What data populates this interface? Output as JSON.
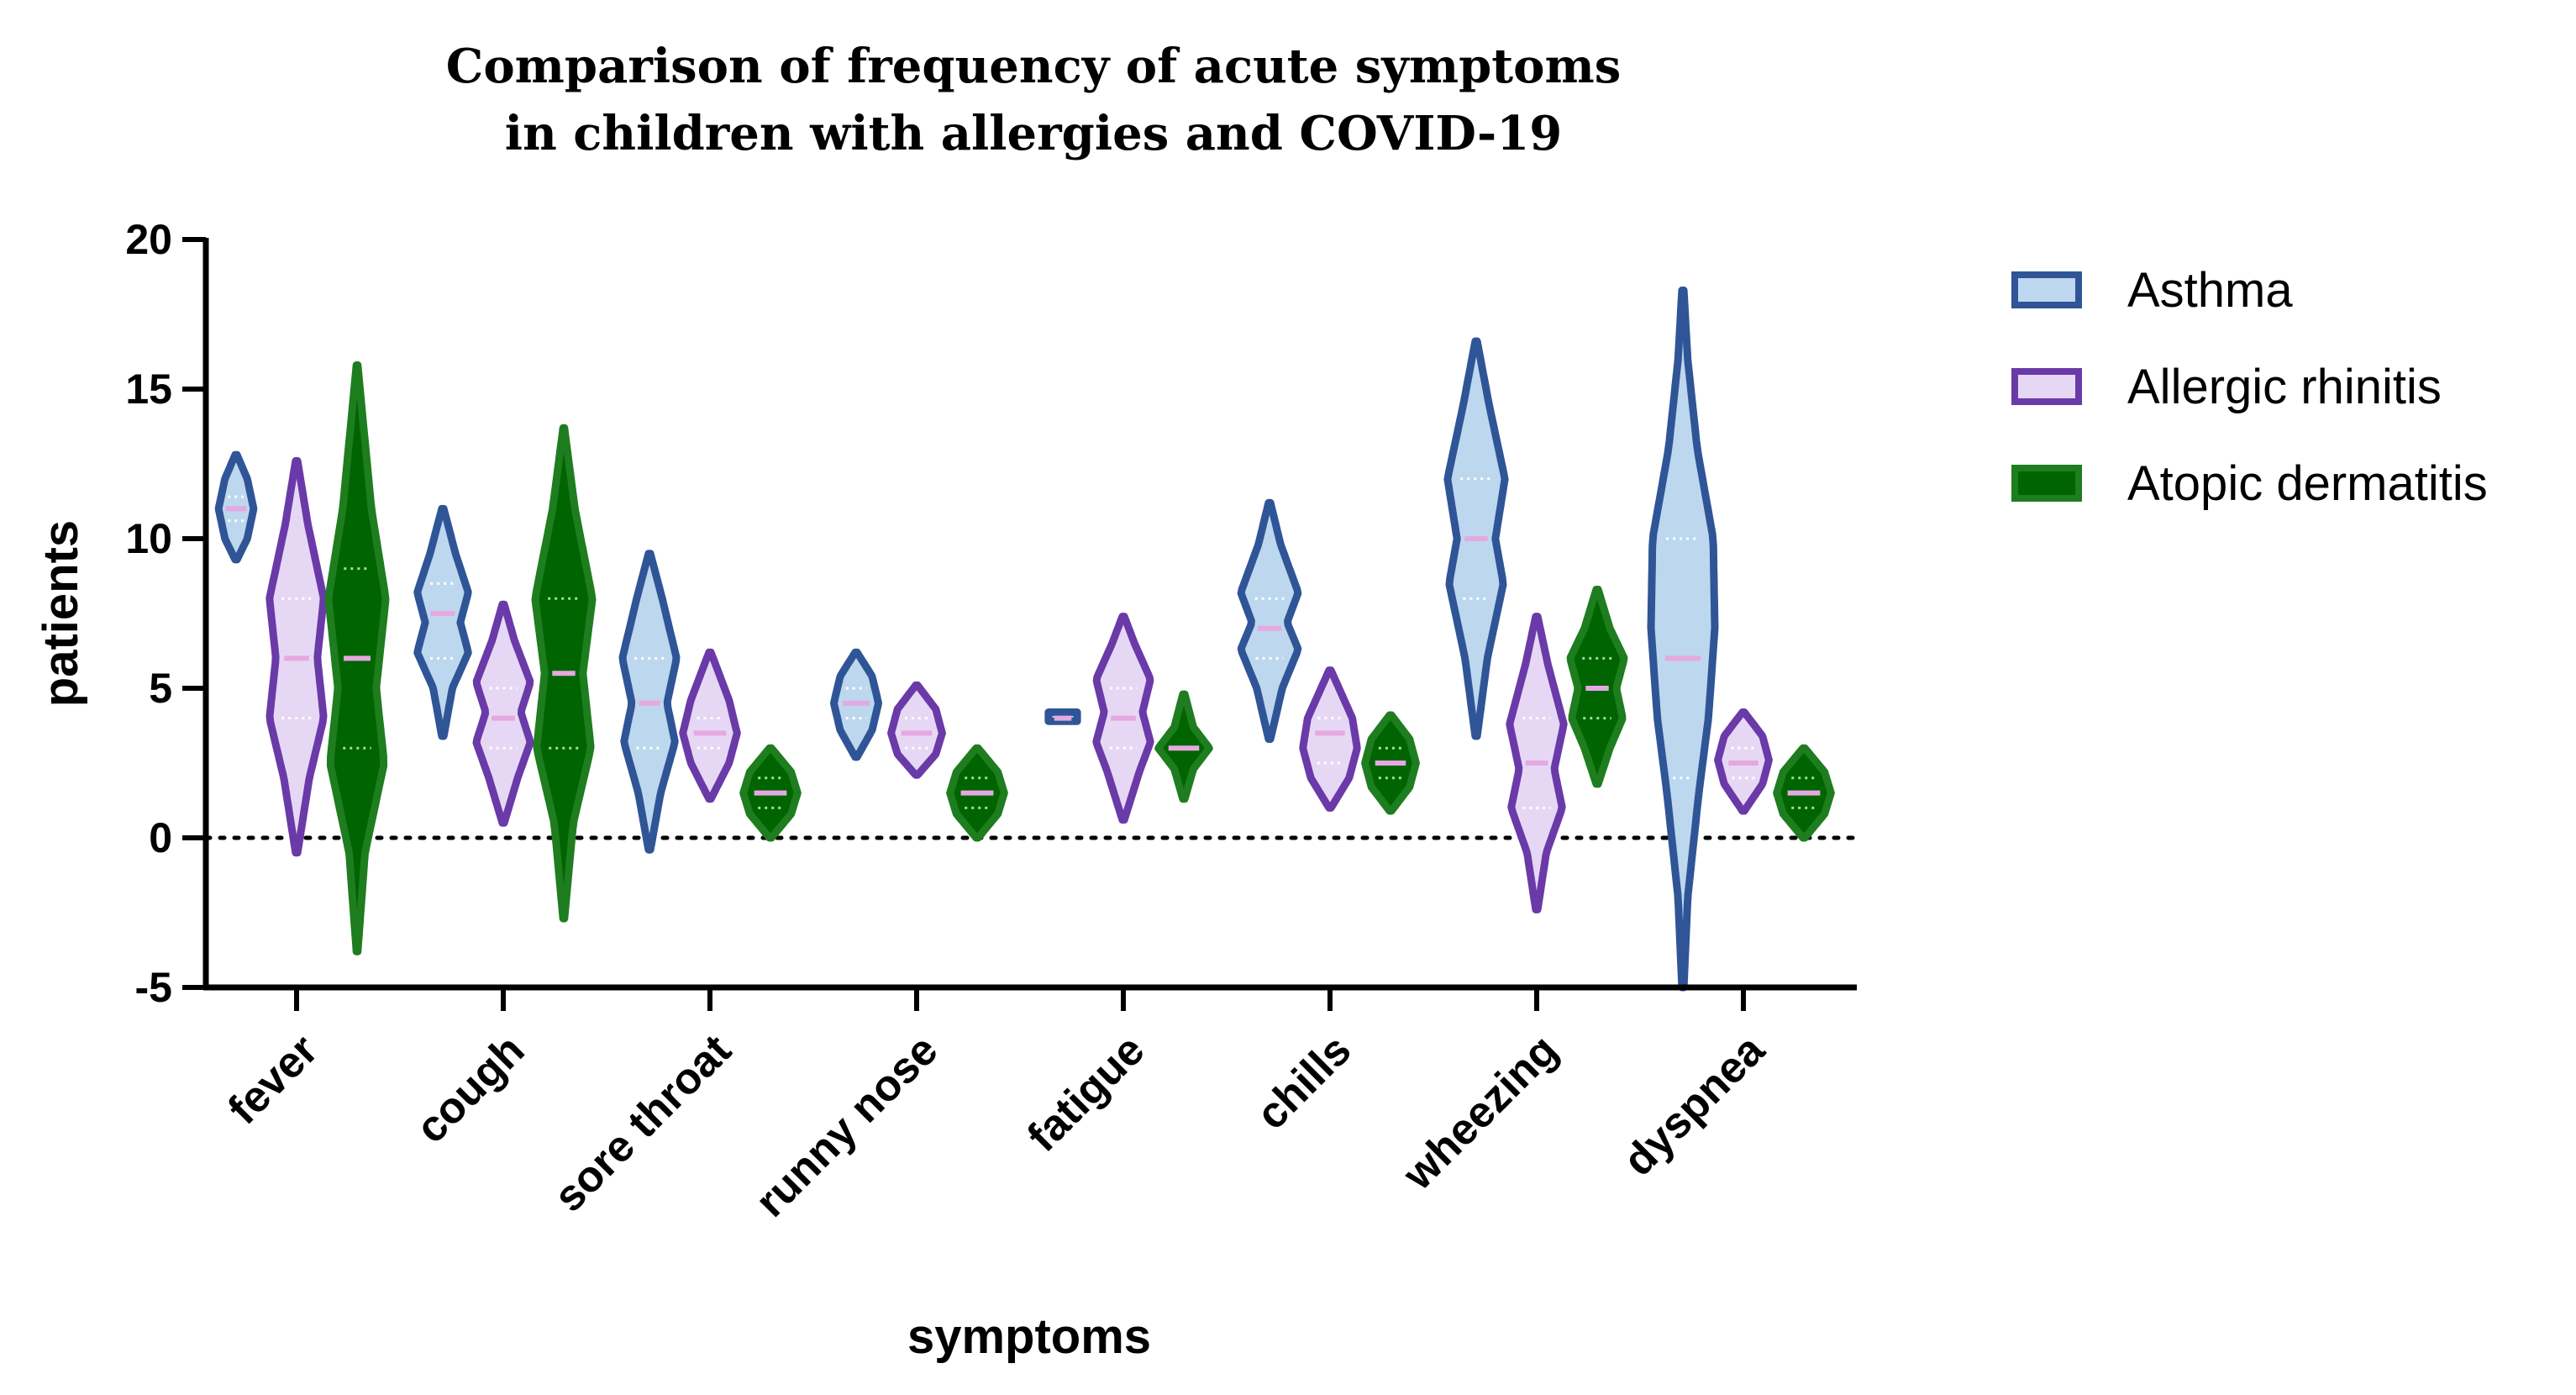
{
  "chart_data": {
    "type": "violin",
    "title_lines": [
      "Comparison of frequency of acute symptoms",
      "in children with allergies and COVID-19"
    ],
    "xlabel": "symptoms",
    "ylabel": "patients",
    "ylim": [
      -5,
      20
    ],
    "yticks": [
      "20",
      "15",
      "10",
      "5",
      "0",
      "-5"
    ],
    "ytick_values": [
      20,
      15,
      10,
      5,
      0,
      -5
    ],
    "reference_line": 0,
    "legend_position": "right",
    "categories": [
      "fever",
      "cough",
      "sore throat",
      "runny nose",
      "fatigue",
      "chills",
      "wheezing",
      "dyspnea"
    ],
    "series": [
      {
        "name": "Asthma",
        "edge_color": "#2f5597",
        "fill_color": "#bdd7ee",
        "violins": [
          {
            "min": 9.3,
            "max": 12.8,
            "median": 11,
            "q1": 10.6,
            "q3": 11.4,
            "shape": [
              [
                9.3,
                0.03
              ],
              [
                10.0,
                0.35
              ],
              [
                11.0,
                0.55
              ],
              [
                12.0,
                0.35
              ],
              [
                12.8,
                0.03
              ]
            ]
          },
          {
            "min": 3.4,
            "max": 11.0,
            "median": 7.5,
            "q1": 6,
            "q3": 8.5,
            "shape": [
              [
                3.4,
                0.03
              ],
              [
                5.0,
                0.3
              ],
              [
                6.2,
                0.8
              ],
              [
                7.2,
                0.55
              ],
              [
                8.2,
                0.8
              ],
              [
                9.5,
                0.4
              ],
              [
                11.0,
                0.03
              ]
            ]
          },
          {
            "min": -0.4,
            "max": 9.5,
            "median": 4.5,
            "q1": 3,
            "q3": 6,
            "shape": [
              [
                -0.4,
                0.03
              ],
              [
                1.5,
                0.35
              ],
              [
                3.2,
                0.8
              ],
              [
                4.5,
                0.55
              ],
              [
                6.0,
                0.85
              ],
              [
                8.0,
                0.4
              ],
              [
                9.5,
                0.03
              ]
            ]
          },
          {
            "min": 2.7,
            "max": 6.2,
            "median": 4.5,
            "q1": 4,
            "q3": 5,
            "shape": [
              [
                2.7,
                0.03
              ],
              [
                3.6,
                0.5
              ],
              [
                4.5,
                0.7
              ],
              [
                5.4,
                0.5
              ],
              [
                6.2,
                0.03
              ]
            ]
          },
          {
            "min": 3.9,
            "max": 4.2,
            "median": 4,
            "q1": 4,
            "q3": 4,
            "shape": [
              [
                3.9,
                0.45
              ],
              [
                4.2,
                0.45
              ]
            ]
          },
          {
            "min": 3.3,
            "max": 11.2,
            "median": 7,
            "q1": 6,
            "q3": 8,
            "shape": [
              [
                3.3,
                0.03
              ],
              [
                5.0,
                0.4
              ],
              [
                6.3,
                0.9
              ],
              [
                7.2,
                0.55
              ],
              [
                8.2,
                0.9
              ],
              [
                9.8,
                0.35
              ],
              [
                11.2,
                0.03
              ]
            ]
          },
          {
            "min": 3.4,
            "max": 16.6,
            "median": 10,
            "q1": 8,
            "q3": 12,
            "shape": [
              [
                3.4,
                0.03
              ],
              [
                6.0,
                0.35
              ],
              [
                8.5,
                0.85
              ],
              [
                10.0,
                0.6
              ],
              [
                12.0,
                0.9
              ],
              [
                14.5,
                0.4
              ],
              [
                16.6,
                0.03
              ]
            ]
          },
          {
            "min": -5,
            "max": 18.3,
            "median": 6,
            "q1": 2,
            "q3": 10,
            "shape": [
              [
                -5,
                0.03
              ],
              [
                -2,
                0.15
              ],
              [
                1.5,
                0.5
              ],
              [
                4.0,
                0.8
              ],
              [
                7.0,
                1.0
              ],
              [
                10.0,
                0.95
              ],
              [
                13.0,
                0.45
              ],
              [
                16.0,
                0.15
              ],
              [
                18.3,
                0.03
              ]
            ]
          }
        ]
      },
      {
        "name": "Allergic rhinitis",
        "edge_color": "#6a3aa8",
        "fill_color": "#e6d8f5",
        "violins": [
          {
            "min": -0.5,
            "max": 12.6,
            "median": 6,
            "q1": 4,
            "q3": 8,
            "shape": [
              [
                -0.5,
                0.03
              ],
              [
                2.0,
                0.4
              ],
              [
                4.0,
                0.85
              ],
              [
                6.0,
                0.65
              ],
              [
                8.0,
                0.85
              ],
              [
                10.5,
                0.35
              ],
              [
                12.6,
                0.03
              ]
            ]
          },
          {
            "min": 0.5,
            "max": 7.8,
            "median": 4,
            "q1": 3,
            "q3": 5,
            "shape": [
              [
                0.5,
                0.03
              ],
              [
                2.0,
                0.45
              ],
              [
                3.2,
                0.85
              ],
              [
                4.2,
                0.55
              ],
              [
                5.2,
                0.85
              ],
              [
                6.6,
                0.35
              ],
              [
                7.8,
                0.03
              ]
            ]
          },
          {
            "min": 1.3,
            "max": 6.2,
            "median": 3.5,
            "q1": 3,
            "q3": 4,
            "shape": [
              [
                1.3,
                0.03
              ],
              [
                2.5,
                0.6
              ],
              [
                3.5,
                0.85
              ],
              [
                4.6,
                0.6
              ],
              [
                6.2,
                0.03
              ]
            ]
          },
          {
            "min": 2.1,
            "max": 5.1,
            "median": 3.5,
            "q1": 3,
            "q3": 4,
            "shape": [
              [
                2.1,
                0.03
              ],
              [
                2.8,
                0.6
              ],
              [
                3.5,
                0.8
              ],
              [
                4.3,
                0.6
              ],
              [
                5.1,
                0.03
              ]
            ]
          },
          {
            "min": 0.6,
            "max": 7.4,
            "median": 4,
            "q1": 3,
            "q3": 5,
            "shape": [
              [
                0.6,
                0.03
              ],
              [
                2.2,
                0.5
              ],
              [
                3.2,
                0.85
              ],
              [
                4.2,
                0.6
              ],
              [
                5.3,
                0.85
              ],
              [
                6.5,
                0.35
              ],
              [
                7.4,
                0.03
              ]
            ]
          },
          {
            "min": 1.0,
            "max": 5.6,
            "median": 3.5,
            "q1": 2.5,
            "q3": 4,
            "shape": [
              [
                1.0,
                0.03
              ],
              [
                2.0,
                0.6
              ],
              [
                3.0,
                0.85
              ],
              [
                4.0,
                0.7
              ],
              [
                5.6,
                0.03
              ]
            ]
          },
          {
            "min": -2.4,
            "max": 7.4,
            "median": 2.5,
            "q1": 1,
            "q3": 4,
            "shape": [
              [
                -2.4,
                0.03
              ],
              [
                -0.5,
                0.3
              ],
              [
                1.0,
                0.8
              ],
              [
                2.3,
                0.55
              ],
              [
                3.8,
                0.85
              ],
              [
                5.8,
                0.35
              ],
              [
                7.4,
                0.03
              ]
            ]
          },
          {
            "min": 0.9,
            "max": 4.2,
            "median": 2.5,
            "q1": 2,
            "q3": 3,
            "shape": [
              [
                0.9,
                0.03
              ],
              [
                1.8,
                0.6
              ],
              [
                2.6,
                0.8
              ],
              [
                3.4,
                0.6
              ],
              [
                4.2,
                0.03
              ]
            ]
          }
        ]
      },
      {
        "name": "Atopic dermatitis",
        "edge_color": "#1e7d1e",
        "fill_color": "#006400",
        "violins": [
          {
            "min": -3.8,
            "max": 15.8,
            "median": 6,
            "q1": 3,
            "q3": 9,
            "shape": [
              [
                -3.8,
                0.02
              ],
              [
                -0.5,
                0.25
              ],
              [
                2.5,
                0.85
              ],
              [
                5.0,
                0.6
              ],
              [
                8.0,
                0.9
              ],
              [
                11.0,
                0.45
              ],
              [
                15.8,
                0.02
              ]
            ]
          },
          {
            "min": -2.7,
            "max": 13.7,
            "median": 5.5,
            "q1": 3,
            "q3": 8,
            "shape": [
              [
                -2.7,
                0.02
              ],
              [
                0.5,
                0.3
              ],
              [
                3.0,
                0.85
              ],
              [
                5.5,
                0.6
              ],
              [
                8.0,
                0.9
              ],
              [
                11.0,
                0.35
              ],
              [
                13.7,
                0.02
              ]
            ]
          },
          {
            "min": 0.0,
            "max": 3.0,
            "median": 1.5,
            "q1": 1,
            "q3": 2,
            "shape": [
              [
                0.0,
                0.03
              ],
              [
                0.8,
                0.65
              ],
              [
                1.5,
                0.85
              ],
              [
                2.2,
                0.65
              ],
              [
                3.0,
                0.03
              ]
            ]
          },
          {
            "min": 0.0,
            "max": 3.0,
            "median": 1.5,
            "q1": 1,
            "q3": 2,
            "shape": [
              [
                0.0,
                0.03
              ],
              [
                0.8,
                0.65
              ],
              [
                1.5,
                0.85
              ],
              [
                2.2,
                0.65
              ],
              [
                3.0,
                0.03
              ]
            ]
          },
          {
            "min": 1.3,
            "max": 4.8,
            "median": 3,
            "q1": 3,
            "q3": 3,
            "shape": [
              [
                1.3,
                0.03
              ],
              [
                2.3,
                0.3
              ],
              [
                3.0,
                0.8
              ],
              [
                3.7,
                0.3
              ],
              [
                4.8,
                0.03
              ]
            ]
          },
          {
            "min": 0.9,
            "max": 4.1,
            "median": 2.5,
            "q1": 2,
            "q3": 3,
            "shape": [
              [
                0.9,
                0.03
              ],
              [
                1.7,
                0.6
              ],
              [
                2.5,
                0.8
              ],
              [
                3.3,
                0.6
              ],
              [
                4.1,
                0.03
              ]
            ]
          },
          {
            "min": 1.8,
            "max": 8.3,
            "median": 5,
            "q1": 4,
            "q3": 6,
            "shape": [
              [
                1.8,
                0.03
              ],
              [
                3.0,
                0.4
              ],
              [
                4.0,
                0.8
              ],
              [
                5.0,
                0.6
              ],
              [
                6.0,
                0.85
              ],
              [
                7.0,
                0.4
              ],
              [
                8.3,
                0.03
              ]
            ]
          },
          {
            "min": 0.0,
            "max": 3.0,
            "median": 1.5,
            "q1": 1,
            "q3": 2,
            "shape": [
              [
                0.0,
                0.03
              ],
              [
                0.8,
                0.65
              ],
              [
                1.5,
                0.85
              ],
              [
                2.2,
                0.65
              ],
              [
                3.0,
                0.03
              ]
            ]
          }
        ]
      }
    ]
  }
}
